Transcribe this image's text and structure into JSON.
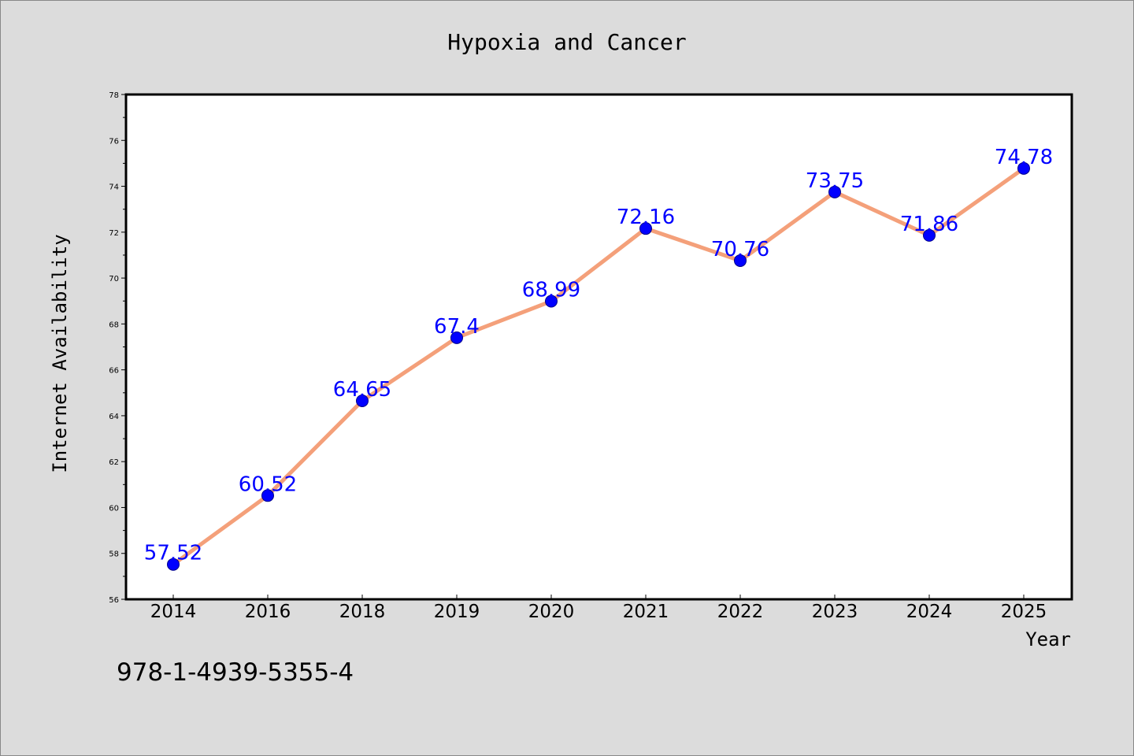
{
  "chart_data": {
    "type": "line",
    "title": "Hypoxia and Cancer",
    "xlabel": "Year",
    "ylabel": "Internet Availability",
    "categories": [
      "2014",
      "2016",
      "2018",
      "2019",
      "2020",
      "2021",
      "2022",
      "2023",
      "2024",
      "2025"
    ],
    "series": [
      {
        "values": [
          57.52,
          60.52,
          64.65,
          67.4,
          68.99,
          72.16,
          70.76,
          73.75,
          71.86,
          74.78
        ]
      }
    ],
    "data_labels": [
      "57.52",
      "60.52",
      "64.65",
      "67.4",
      "68.99",
      "72.16",
      "70.76",
      "73.75",
      "71.86",
      "74.78"
    ],
    "ylim": [
      56,
      78
    ],
    "yticks": [
      "56",
      "58",
      "60",
      "62",
      "64",
      "66",
      "68",
      "70",
      "72",
      "74",
      "76",
      "78"
    ],
    "grid": false,
    "colors": {
      "line": "#f4a07a",
      "marker": "#0000ff",
      "label": "#0000ff",
      "background": "#dcdcdc",
      "plot_bg": "#ffffff"
    }
  },
  "footer_text": "978-1-4939-5355-4"
}
